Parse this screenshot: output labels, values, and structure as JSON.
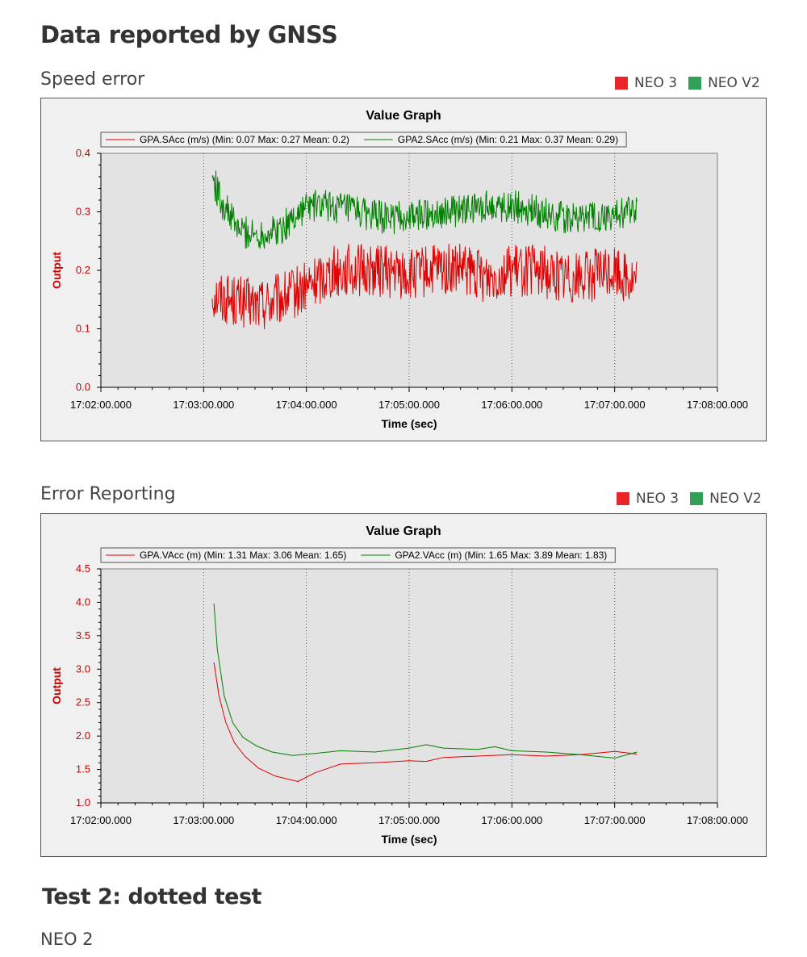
{
  "page": {
    "title": "Data reported by GNSS",
    "section2_title": "Test 2: dotted test",
    "section2_subtitle": "NEO  2"
  },
  "legend": {
    "items": [
      {
        "label": "NEO 3",
        "color": "#e8262a"
      },
      {
        "label": "NEO V2",
        "color": "#33a05a"
      }
    ]
  },
  "chart_data": [
    {
      "heading": "Speed error",
      "type": "line",
      "title": "Value Graph",
      "xlabel": "Time (sec)",
      "ylabel": "Output",
      "xticks": [
        "17:02:00.000",
        "17:03:00.000",
        "17:04:00.000",
        "17:05:00.000",
        "17:06:00.000",
        "17:07:00.000",
        "17:08:00.000"
      ],
      "ylim": [
        0.0,
        0.4
      ],
      "yticks": [
        "0.0",
        "0.1",
        "0.2",
        "0.3",
        "0.4"
      ],
      "grid": "vertical dotted",
      "legend_position": "top",
      "series": [
        {
          "name": "GPA.SAcc (m/s) (Min: 0.07 Max: 0.27 Mean: 0.2)",
          "color": "#e00000",
          "x": [
            "17:03:05",
            "17:03:15",
            "17:03:30",
            "17:03:45",
            "17:04:00",
            "17:04:15",
            "17:04:30",
            "17:04:45",
            "17:05:00",
            "17:05:15",
            "17:05:30",
            "17:05:45",
            "17:06:00",
            "17:06:15",
            "17:06:30",
            "17:06:45",
            "17:07:00",
            "17:07:13"
          ],
          "y": [
            0.16,
            0.15,
            0.14,
            0.15,
            0.17,
            0.2,
            0.2,
            0.2,
            0.19,
            0.2,
            0.2,
            0.19,
            0.2,
            0.2,
            0.19,
            0.19,
            0.2,
            0.18
          ]
        },
        {
          "name": "GPA2.SAcc (m/s) (Min: 0.21 Max: 0.37 Mean: 0.29)",
          "color": "#008000",
          "x": [
            "17:03:05",
            "17:03:10",
            "17:03:20",
            "17:03:30",
            "17:03:45",
            "17:04:00",
            "17:04:15",
            "17:04:30",
            "17:04:45",
            "17:05:00",
            "17:05:15",
            "17:05:30",
            "17:05:45",
            "17:06:00",
            "17:06:15",
            "17:06:30",
            "17:06:45",
            "17:07:00",
            "17:07:13"
          ],
          "y": [
            0.36,
            0.32,
            0.27,
            0.26,
            0.27,
            0.31,
            0.31,
            0.3,
            0.29,
            0.29,
            0.3,
            0.3,
            0.31,
            0.31,
            0.3,
            0.29,
            0.29,
            0.29,
            0.31
          ]
        }
      ]
    },
    {
      "heading": "Error Reporting",
      "type": "line",
      "title": "Value Graph",
      "xlabel": "Time (sec)",
      "ylabel": "Output",
      "xticks": [
        "17:02:00.000",
        "17:03:00.000",
        "17:04:00.000",
        "17:05:00.000",
        "17:06:00.000",
        "17:07:00.000",
        "17:08:00.000"
      ],
      "ylim": [
        1.0,
        4.5
      ],
      "yticks": [
        "1.0",
        "1.5",
        "2.0",
        "2.5",
        "3.0",
        "3.5",
        "4.0",
        "4.5"
      ],
      "grid": "vertical dotted",
      "legend_position": "top",
      "series": [
        {
          "name": "GPA.VAcc (m) (Min: 1.31 Max: 3.06 Mean: 1.65)",
          "color": "#e00000",
          "x": [
            "17:03:06",
            "17:03:09",
            "17:03:13",
            "17:03:18",
            "17:03:24",
            "17:03:32",
            "17:03:42",
            "17:03:55",
            "17:04:05",
            "17:04:20",
            "17:04:40",
            "17:05:00",
            "17:05:10",
            "17:05:20",
            "17:05:40",
            "17:06:00",
            "17:06:20",
            "17:06:40",
            "17:07:00",
            "17:07:13"
          ],
          "y": [
            3.1,
            2.6,
            2.2,
            1.9,
            1.7,
            1.52,
            1.4,
            1.32,
            1.45,
            1.58,
            1.6,
            1.63,
            1.62,
            1.68,
            1.7,
            1.72,
            1.7,
            1.72,
            1.77,
            1.73
          ]
        },
        {
          "name": "GPA2.VAcc (m) (Min: 1.65 Max: 3.89 Mean: 1.83)",
          "color": "#008000",
          "x": [
            "17:03:06",
            "17:03:08",
            "17:03:12",
            "17:03:17",
            "17:03:23",
            "17:03:31",
            "17:03:40",
            "17:03:52",
            "17:04:05",
            "17:04:20",
            "17:04:40",
            "17:05:00",
            "17:05:10",
            "17:05:20",
            "17:05:40",
            "17:05:50",
            "17:06:00",
            "17:06:20",
            "17:06:40",
            "17:07:00",
            "17:07:13"
          ],
          "y": [
            3.98,
            3.3,
            2.6,
            2.2,
            1.98,
            1.85,
            1.76,
            1.71,
            1.74,
            1.78,
            1.76,
            1.82,
            1.87,
            1.82,
            1.8,
            1.84,
            1.78,
            1.76,
            1.72,
            1.67,
            1.76
          ]
        }
      ]
    }
  ]
}
